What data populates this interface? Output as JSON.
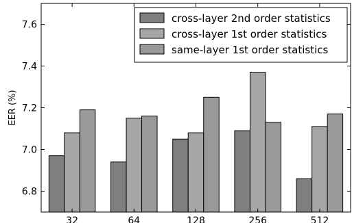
{
  "chart_data": {
    "type": "bar",
    "categories": [
      "32",
      "64",
      "128",
      "256",
      "512"
    ],
    "series": [
      {
        "name": "cross-layer 2nd order statistics",
        "values": [
          6.97,
          6.94,
          7.05,
          7.09,
          6.86
        ],
        "color": "#7f7f7f"
      },
      {
        "name": "cross-layer 1st order statistics",
        "values": [
          7.08,
          7.15,
          7.08,
          7.37,
          7.11
        ],
        "color": "#a6a6a6"
      },
      {
        "name": "same-layer 1st order statistics",
        "values": [
          7.19,
          7.16,
          7.25,
          7.13,
          7.17
        ],
        "color": "#999999"
      }
    ],
    "xlabel": "",
    "ylabel": "EER (%)",
    "ylim": [
      6.7,
      7.7
    ],
    "yticks": [
      6.8,
      7.0,
      7.2,
      7.4,
      7.6
    ],
    "ytick_labels": [
      "6.8",
      "7.0",
      "7.2",
      "7.4",
      "7.6"
    ],
    "legend_position": "top-right",
    "grid": false
  }
}
